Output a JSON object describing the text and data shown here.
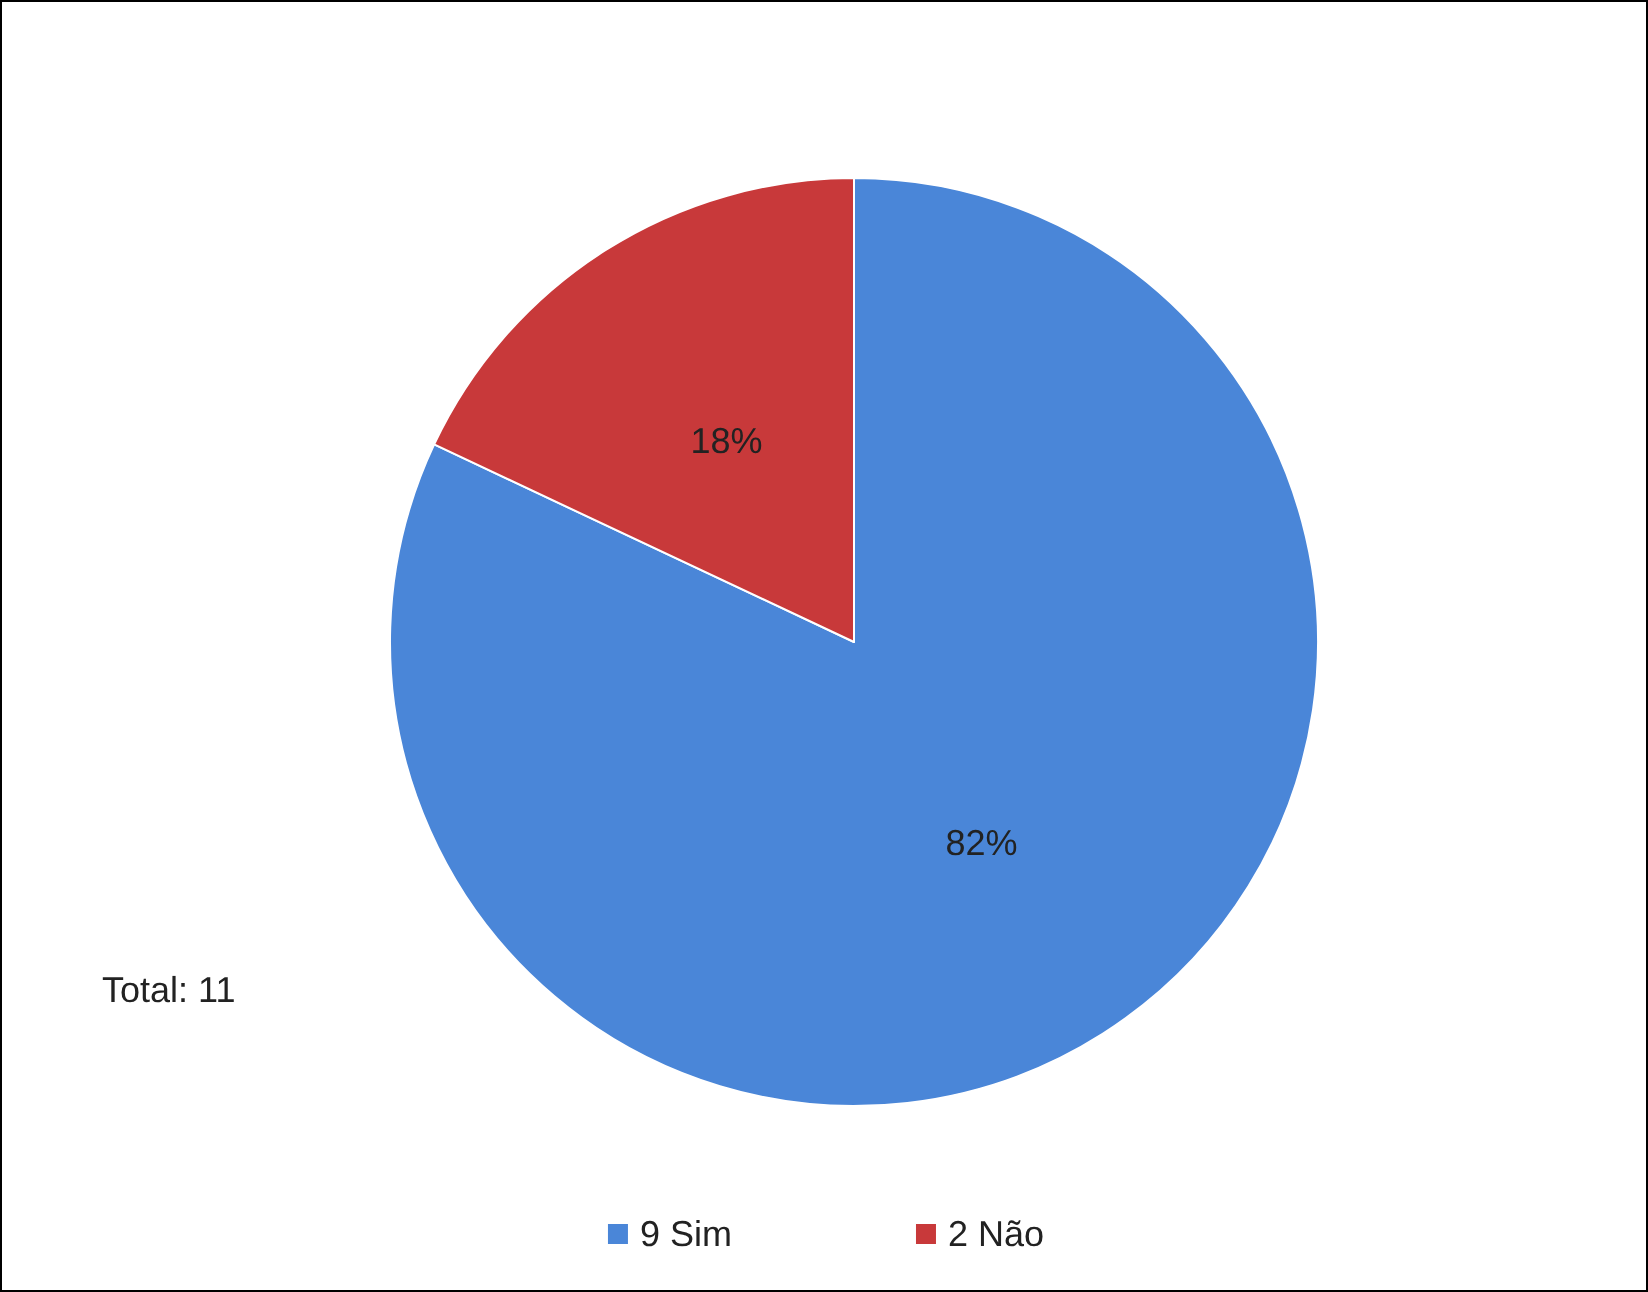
{
  "chart_data": {
    "type": "pie",
    "categories": [
      "9 Sim",
      "2 Não"
    ],
    "values": [
      82,
      18
    ],
    "colors": [
      "#4a86d8",
      "#c8393a"
    ],
    "value_labels": [
      "82%",
      "18%"
    ],
    "annotations": [
      "Total: 11"
    ],
    "legend": "bottom"
  }
}
